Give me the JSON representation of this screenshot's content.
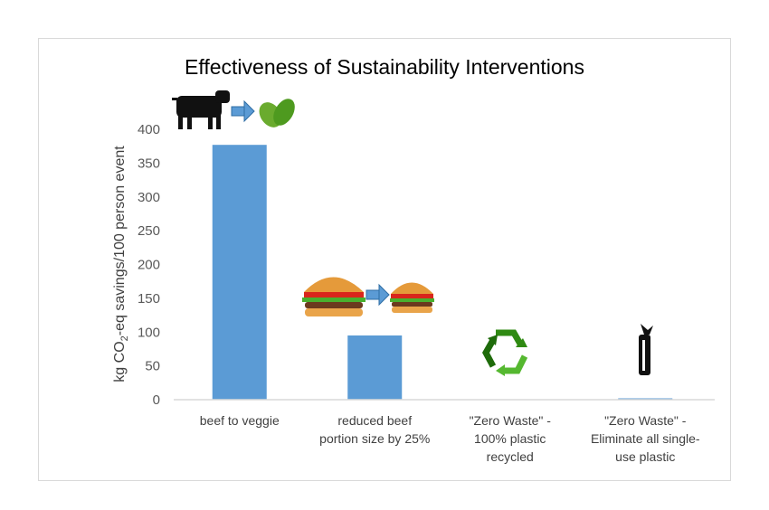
{
  "chart_data": {
    "type": "bar",
    "title": "Effectiveness of Sustainability Interventions",
    "xlabel": "",
    "ylabel": "kg CO2-eq savings/100 person event",
    "ylabel_parts": {
      "pre": "kg CO",
      "sub": "2",
      "post": "-eq savings/100 person event"
    },
    "ylim": [
      0,
      400
    ],
    "yticks": [
      "0",
      "50",
      "100",
      "150",
      "200",
      "250",
      "300",
      "350",
      "400"
    ],
    "categories": [
      [
        "beef to veggie"
      ],
      [
        "reduced beef",
        "portion size by 25%"
      ],
      [
        "\"Zero Waste\" -",
        "100% plastic",
        "recycled"
      ],
      [
        "\"Zero Waste\" -",
        "Eliminate all single-",
        "use plastic"
      ]
    ],
    "values": [
      377,
      95,
      0,
      2
    ],
    "bar_color": "#5b9bd5",
    "grid": false,
    "icons": [
      "cow-to-leaf-icon",
      "big-burger-to-small-burger-icon",
      "recycle-icon",
      "water-bottle-icon"
    ]
  }
}
